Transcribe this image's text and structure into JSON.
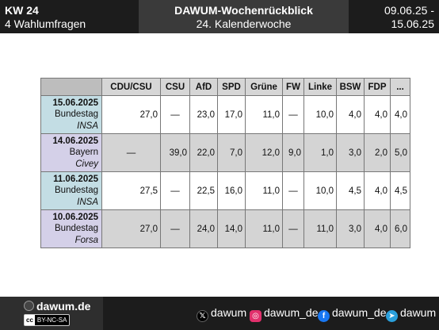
{
  "header": {
    "week_short": "KW 24",
    "polls_count": "4 Wahlumfragen",
    "title": "DAWUM-Wochenrückblick",
    "subtitle": "24. Kalenderwoche",
    "date_from": "09.06.25 -",
    "date_to": "15.06.25"
  },
  "table": {
    "columns": [
      "CDU/CSU",
      "CSU",
      "AfD",
      "SPD",
      "Grüne",
      "FW",
      "Linke",
      "BSW",
      "FDP",
      "..."
    ],
    "rows": [
      {
        "date": "15.06.2025",
        "parliament": "Bundestag",
        "institute": "INSA",
        "values": [
          "27,0",
          "—",
          "23,0",
          "17,0",
          "11,0",
          "—",
          "10,0",
          "4,0",
          "4,0",
          "4,0"
        ]
      },
      {
        "date": "14.06.2025",
        "parliament": "Bayern",
        "institute": "Civey",
        "values": [
          "—",
          "39,0",
          "22,0",
          "7,0",
          "12,0",
          "9,0",
          "1,0",
          "3,0",
          "2,0",
          "5,0"
        ]
      },
      {
        "date": "11.06.2025",
        "parliament": "Bundestag",
        "institute": "INSA",
        "values": [
          "27,5",
          "—",
          "22,5",
          "16,0",
          "11,0",
          "—",
          "10,0",
          "4,5",
          "4,0",
          "4,5"
        ]
      },
      {
        "date": "10.06.2025",
        "parliament": "Bundestag",
        "institute": "Forsa",
        "values": [
          "27,0",
          "—",
          "24,0",
          "14,0",
          "11,0",
          "—",
          "11,0",
          "3,0",
          "4,0",
          "6,0"
        ]
      }
    ]
  },
  "footer": {
    "site": "dawum.de",
    "license_badge": "cc",
    "license": "BY-NC-SA",
    "x_handle": "dawum",
    "instagram_handle": "dawum_de",
    "facebook_handle": "dawum_de",
    "telegram_handle": "dawum",
    "icons": {
      "site": "dawum-logo-icon",
      "x": "x-icon",
      "instagram": "instagram-icon",
      "facebook": "facebook-icon",
      "telegram": "telegram-icon"
    }
  }
}
